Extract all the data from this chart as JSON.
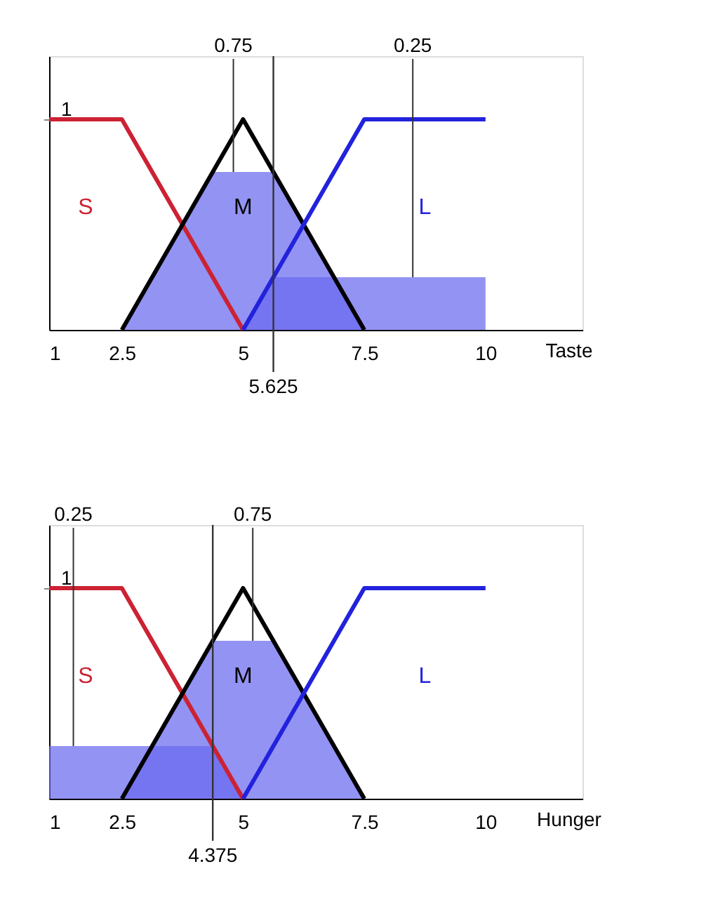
{
  "chart_data": [
    {
      "type": "line",
      "xlabel": "Taste",
      "xlim": [
        1,
        12
      ],
      "xticks": [
        1,
        2.5,
        5,
        7.5,
        10
      ],
      "ylim": [
        0,
        1.3
      ],
      "yticks": [
        1
      ],
      "grid": false,
      "marker": "none",
      "line_style": "solid",
      "series": [
        {
          "type": "area",
          "color": "#6a6af0",
          "x": [
            5,
            5.625,
            10
          ],
          "values": [
            0,
            0.25,
            0.25
          ]
        },
        {
          "type": "area",
          "color": "#6a6af0",
          "x": [
            2.5,
            4.375,
            5.625,
            7.5
          ],
          "values": [
            0,
            0.75,
            0.75,
            0
          ]
        },
        {
          "name": "S",
          "color": "#cc2233",
          "x": [
            1,
            2.5,
            5
          ],
          "values": [
            1,
            1,
            0
          ]
        },
        {
          "name": "M",
          "color": "#000000",
          "x": [
            2.5,
            5,
            7.5
          ],
          "values": [
            0,
            1,
            0
          ]
        },
        {
          "name": "L",
          "color": "#2222dd",
          "x": [
            5,
            7.5,
            10
          ],
          "values": [
            0,
            1,
            1
          ]
        }
      ],
      "ref_lines": [
        {
          "axis": "x",
          "value": 5.625,
          "label": "5.625",
          "color": "#333333"
        }
      ],
      "annotations": [
        {
          "text": "0.75",
          "x": 4.8,
          "y": 0.75
        },
        {
          "text": "0.25",
          "x": 8.5,
          "y": 0.25
        }
      ]
    },
    {
      "type": "line",
      "xlabel": "Hunger",
      "xlim": [
        1,
        12
      ],
      "xticks": [
        1,
        2.5,
        5,
        7.5,
        10
      ],
      "ylim": [
        0,
        1.3
      ],
      "yticks": [
        1
      ],
      "grid": false,
      "marker": "none",
      "line_style": "solid",
      "series": [
        {
          "type": "area",
          "color": "#6a6af0",
          "x": [
            1,
            4.375,
            5
          ],
          "values": [
            0.25,
            0.25,
            0
          ]
        },
        {
          "type": "area",
          "color": "#6a6af0",
          "x": [
            2.5,
            4.375,
            5.625,
            7.5
          ],
          "values": [
            0,
            0.75,
            0.75,
            0
          ]
        },
        {
          "name": "S",
          "color": "#cc2233",
          "x": [
            1,
            2.5,
            5
          ],
          "values": [
            1,
            1,
            0
          ]
        },
        {
          "name": "M",
          "color": "#000000",
          "x": [
            2.5,
            5,
            7.5
          ],
          "values": [
            0,
            1,
            0
          ]
        },
        {
          "name": "L",
          "color": "#2222dd",
          "x": [
            5,
            7.5,
            10
          ],
          "values": [
            0,
            1,
            1
          ]
        }
      ],
      "ref_lines": [
        {
          "axis": "x",
          "value": 4.375,
          "label": "4.375",
          "color": "#333333"
        }
      ],
      "annotations": [
        {
          "text": "0.25",
          "x": 1.5,
          "y": 0.25
        },
        {
          "text": "0.75",
          "x": 5.2,
          "y": 0.75
        }
      ]
    }
  ]
}
